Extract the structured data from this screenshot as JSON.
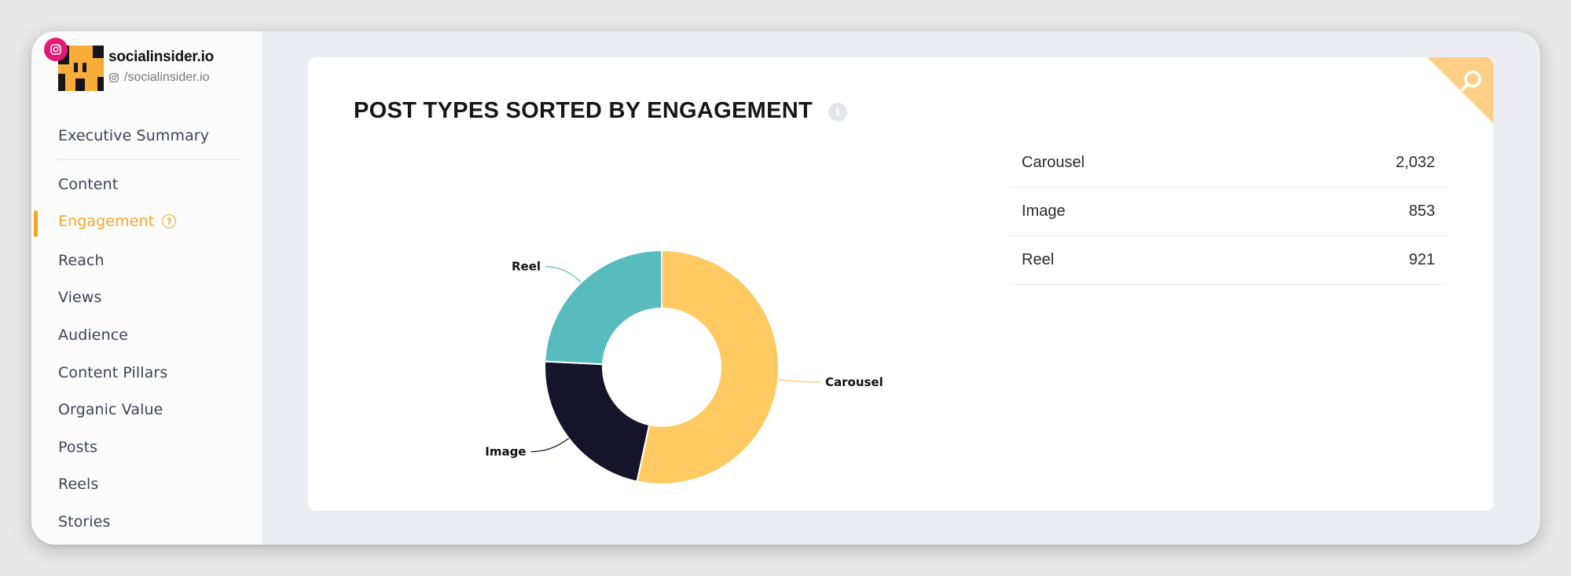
{
  "profile": {
    "name": "socialinsider.io",
    "handle": "/socialinsider.io"
  },
  "sidebar": {
    "items": [
      {
        "label": "Executive Summary"
      },
      {
        "label": "Content"
      },
      {
        "label": "Engagement",
        "active": true
      },
      {
        "label": "Reach"
      },
      {
        "label": "Views"
      },
      {
        "label": "Audience"
      },
      {
        "label": "Content Pillars"
      },
      {
        "label": "Organic Value"
      },
      {
        "label": "Posts"
      },
      {
        "label": "Reels"
      },
      {
        "label": "Stories"
      }
    ]
  },
  "card": {
    "title": "POST TYPES SORTED BY ENGAGEMENT"
  },
  "table": {
    "rows": [
      {
        "label": "Carousel",
        "value": "2,032"
      },
      {
        "label": "Image",
        "value": "853"
      },
      {
        "label": "Reel",
        "value": "921"
      }
    ]
  },
  "chart_data": {
    "type": "pie",
    "title": "POST TYPES SORTED BY ENGAGEMENT",
    "categories": [
      "Carousel",
      "Image",
      "Reel"
    ],
    "values": [
      2032,
      853,
      921
    ],
    "colors": [
      "#ffca62",
      "#15142b",
      "#58bcbf"
    ],
    "donut": true
  },
  "colors": {
    "accent": "#f5a623",
    "instagram": "#e51874",
    "corner": "#ffcf87"
  },
  "icons": {
    "corner": "search-icon",
    "info": "info-icon",
    "help": "help-circle-icon",
    "badge": "instagram-icon"
  }
}
